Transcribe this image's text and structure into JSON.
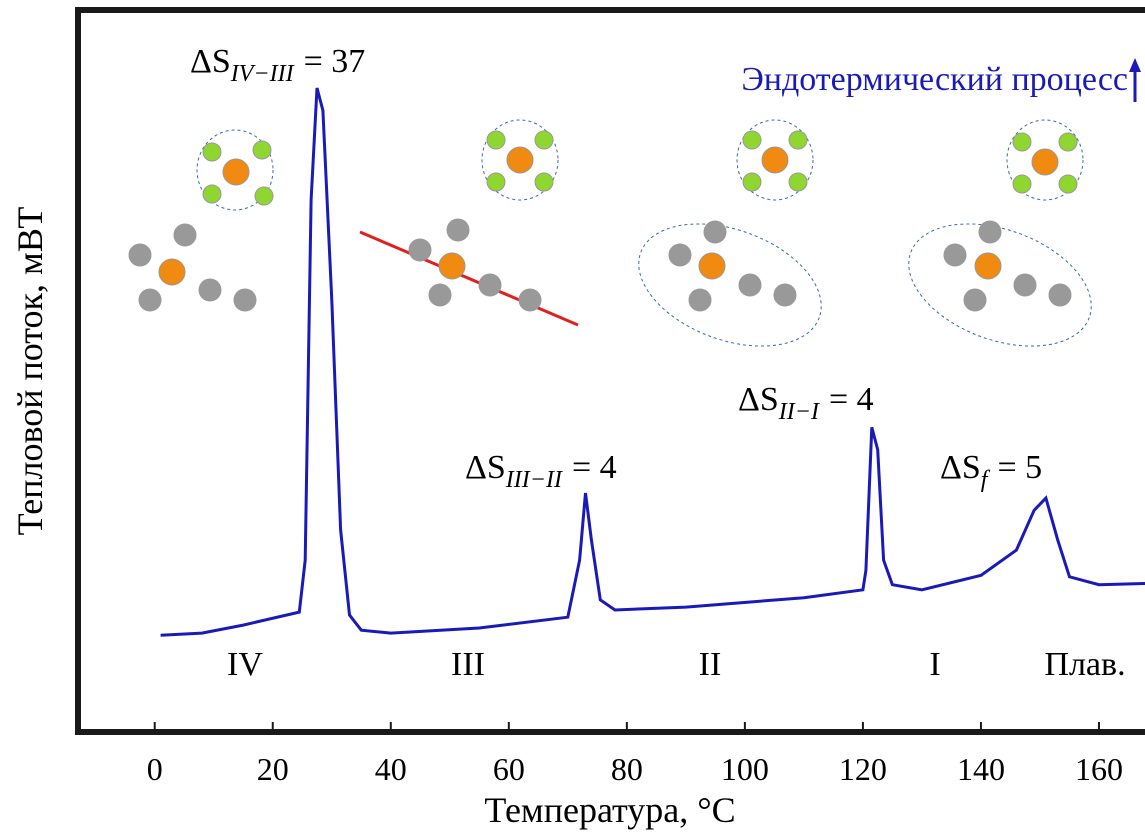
{
  "chart_data": {
    "type": "line",
    "x_label": "Температура, °C",
    "y_label": "Тепловой поток, мВТ",
    "x": [
      1,
      8,
      15,
      24.5,
      25.5,
      26.5,
      27.5,
      28.5,
      30,
      31.5,
      33,
      35,
      40,
      55,
      70,
      72,
      73,
      74,
      75.5,
      78,
      90,
      110,
      120,
      120.5,
      121.5,
      122.5,
      123.5,
      125,
      130,
      140,
      146,
      149,
      151,
      153,
      155,
      160,
      169
    ],
    "values": [
      13.4,
      13.7,
      14.8,
      16.6,
      23.8,
      73.7,
      89.2,
      86.1,
      59.8,
      28.0,
      16.2,
      14.1,
      13.7,
      14.4,
      15.9,
      23.8,
      33.1,
      26.6,
      18.3,
      16.9,
      17.3,
      18.6,
      19.7,
      22.4,
      42.2,
      39.1,
      23.8,
      20.4,
      19.7,
      21.7,
      25.2,
      30.7,
      32.4,
      26.6,
      21.5,
      20.4,
      20.6
    ],
    "color": "#1a1ab8",
    "xlim": [
      -13,
      170
    ],
    "ylim": [
      0,
      100
    ],
    "xticks": [
      0,
      20,
      40,
      60,
      80,
      100,
      120,
      140,
      160
    ],
    "annotations": [
      {
        "text": "ΔS",
        "sub": "IV−III",
        "rest": "= 37"
      },
      {
        "text": "ΔS",
        "sub": "III−II",
        "rest": "= 4"
      },
      {
        "text": "ΔS",
        "sub": "II−I",
        "rest": "= 4"
      },
      {
        "text": "ΔS",
        "sub": "f",
        "rest": "= 5"
      }
    ],
    "phases": [
      "IV",
      "III",
      "II",
      "I",
      "Плав."
    ],
    "process_label": "Эндотермический процесс"
  }
}
